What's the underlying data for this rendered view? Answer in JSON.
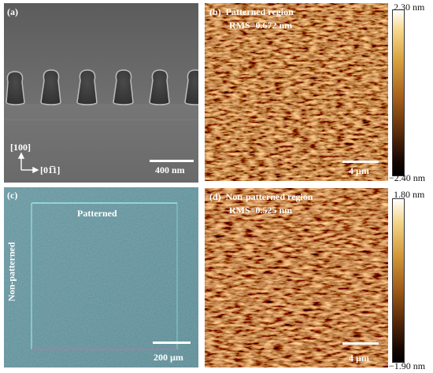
{
  "panels": {
    "a": {
      "label": "(a)",
      "axis_vertical": "[100]",
      "axis_horizontal": "[01̅1]",
      "scalebar": "400 nm"
    },
    "b": {
      "label": "(b)",
      "title": "Patterned region",
      "rms": "RMS=0.672 nm",
      "scalebar": "4 µm",
      "colorbar_max": "2.30 nm",
      "colorbar_min": "−2.40 nm"
    },
    "c": {
      "label": "(c)",
      "patterned": "Patterned",
      "non_patterned": "Non-patterned",
      "scalebar": "200 µm"
    },
    "d": {
      "label": "(d)",
      "title": "Non-patterned region",
      "rms": "RMS=0.525 nm",
      "scalebar": "4 µm",
      "colorbar_max": "1.80 nm",
      "colorbar_min": "−1.90 nm"
    }
  },
  "colors": {
    "sem_background": "#6a6a6a",
    "optical_background": "#5f8f99",
    "afm_mid": "#9a5a1e",
    "pattern_border": "#8fe0d8"
  }
}
